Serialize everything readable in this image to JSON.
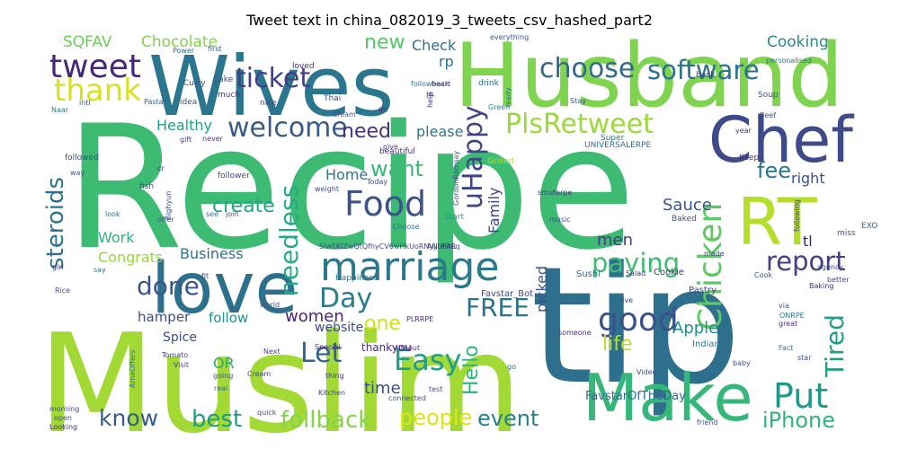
{
  "chart_data": {
    "type": "wordcloud",
    "title": "Tweet text in china_082019_3_tweets_csv_hashed_part2",
    "background": "#ffffff",
    "words": [
      {
        "text": "Recipe",
        "color": "#3dbb73"
      },
      {
        "text": "tip",
        "color": "#2e6f8e"
      },
      {
        "text": "Muslim",
        "color": "#a2d934"
      },
      {
        "text": "Husband",
        "color": "#7ed34f"
      },
      {
        "text": "Wives",
        "color": "#2a768e"
      },
      {
        "text": "Make",
        "color": "#35b779"
      },
      {
        "text": "love",
        "color": "#2d708e"
      },
      {
        "text": "Chef",
        "color": "#3e4a89"
      },
      {
        "text": "RT",
        "color": "#b5de2b"
      },
      {
        "text": "marriage",
        "color": "#2a788e"
      },
      {
        "text": "Food",
        "color": "#3b528b"
      },
      {
        "text": "tweet",
        "color": "#482677"
      },
      {
        "text": "thank",
        "color": "#d8e219"
      },
      {
        "text": "Chicken",
        "color": "#5ec962"
      },
      {
        "text": "good",
        "color": "#3b518b"
      },
      {
        "text": "Put",
        "color": "#1f988b"
      },
      {
        "text": "Easy",
        "color": "#1f9e89"
      },
      {
        "text": "PlsRetweet",
        "color": "#9bd93c"
      },
      {
        "text": "ticket",
        "color": "#424086"
      },
      {
        "text": "choose",
        "color": "#31688e"
      },
      {
        "text": "software",
        "color": "#2c728e"
      },
      {
        "text": "welcome",
        "color": "#375b8d"
      },
      {
        "text": "report",
        "color": "#433e85"
      },
      {
        "text": "paying",
        "color": "#3fbc73"
      },
      {
        "text": "uHappy",
        "color": "#404588"
      },
      {
        "text": "needless",
        "color": "#25ab82"
      },
      {
        "text": "done",
        "color": "#39568c"
      },
      {
        "text": "Day",
        "color": "#287d8e"
      },
      {
        "text": "Let",
        "color": "#33638d"
      },
      {
        "text": "FREE",
        "color": "#2c738e"
      },
      {
        "text": "Tired",
        "color": "#1f9f88"
      },
      {
        "text": "iPhone",
        "color": "#31b57b"
      },
      {
        "text": "know",
        "color": "#365c8d"
      },
      {
        "text": "best",
        "color": "#1e9c89"
      },
      {
        "text": "follback",
        "color": "#84d44b"
      },
      {
        "text": "event",
        "color": "#27808e"
      },
      {
        "text": "people",
        "color": "#dfe318"
      },
      {
        "text": "steroids",
        "color": "#2c728e"
      },
      {
        "text": "want",
        "color": "#38b977"
      },
      {
        "text": "fee",
        "color": "#2a778e"
      },
      {
        "text": "need",
        "color": "#46337f"
      },
      {
        "text": "new",
        "color": "#56c667"
      },
      {
        "text": "create",
        "color": "#22a785"
      },
      {
        "text": "life",
        "color": "#b8de29"
      },
      {
        "text": "one",
        "color": "#d2e21b"
      },
      {
        "text": "Hello",
        "color": "#2fb47c"
      },
      {
        "text": "Apple",
        "color": "#21908d"
      },
      {
        "text": "Sauce",
        "color": "#3a548c"
      },
      {
        "text": "time",
        "color": "#3d4e8a"
      },
      {
        "text": "men",
        "color": "#453781"
      },
      {
        "text": "women",
        "color": "#482475"
      },
      {
        "text": "SQFAV",
        "color": "#6ccd5a"
      },
      {
        "text": "Chocolate",
        "color": "#81d34d"
      },
      {
        "text": "Cooking",
        "color": "#23898e"
      },
      {
        "text": "Healthy",
        "color": "#1fa088"
      },
      {
        "text": "please",
        "color": "#2a788e"
      },
      {
        "text": "Check",
        "color": "#2d708e"
      },
      {
        "text": "rp",
        "color": "#2c738e"
      },
      {
        "text": "Home",
        "color": "#2b758e"
      },
      {
        "text": "Family",
        "color": "#3f4788"
      },
      {
        "text": "right",
        "color": "#3b528b"
      },
      {
        "text": "Business",
        "color": "#2c728e"
      },
      {
        "text": "Work",
        "color": "#2db27d"
      },
      {
        "text": "Congrats",
        "color": "#95d840"
      },
      {
        "text": "hamper",
        "color": "#3d4d8a"
      },
      {
        "text": "follow",
        "color": "#21918c"
      },
      {
        "text": "website",
        "color": "#3e4989"
      },
      {
        "text": "thankyou",
        "color": "#46307e"
      },
      {
        "text": "picked",
        "color": "#3a548c"
      },
      {
        "text": "tl",
        "color": "#481a6c"
      },
      {
        "text": "OR",
        "color": "#22a884"
      },
      {
        "text": "Spice",
        "color": "#3e4c8a"
      },
      {
        "text": "FavstarOfTheDay",
        "color": "#30698e"
      },
      {
        "text": "Favstar_Bot",
        "color": "#404688"
      },
      {
        "text": "Happiness",
        "color": "#2a788e"
      },
      {
        "text": "Pastry",
        "color": "#433e85"
      },
      {
        "text": "Indian",
        "color": "#2a788e"
      },
      {
        "text": "Sushi",
        "color": "#32648e"
      },
      {
        "text": "Cookie",
        "color": "#46307e"
      },
      {
        "text": "Baked",
        "color": "#3b528b"
      },
      {
        "text": "Start",
        "color": "#1fa088"
      },
      {
        "text": "follower",
        "color": "#3e4a89"
      },
      {
        "text": "beautiful",
        "color": "#46327e"
      },
      {
        "text": "Grilled",
        "color": "#bade28"
      },
      {
        "text": "Super",
        "color": "#2d708e"
      },
      {
        "text": "UNIVERSALERPE",
        "color": "#2e6f8e"
      },
      {
        "text": "Soup",
        "color": "#3b528b"
      },
      {
        "text": "Keep",
        "color": "#463480"
      },
      {
        "text": "EXO",
        "color": "#355f8d"
      },
      {
        "text": "miss",
        "color": "#3a548c"
      },
      {
        "text": "following",
        "color": "#453882"
      },
      {
        "text": "Curry",
        "color": "#3d4d8a"
      },
      {
        "text": "Cake",
        "color": "#3c4f8a"
      },
      {
        "text": "Power",
        "color": "#2e6e8e"
      },
      {
        "text": "first",
        "color": "#3b528b"
      },
      {
        "text": "followback",
        "color": "#2d718e"
      },
      {
        "text": "heart",
        "color": "#46327e"
      },
      {
        "text": "Hi",
        "color": "#3f4788"
      },
      {
        "text": "loved",
        "color": "#472d7b"
      },
      {
        "text": "everything",
        "color": "#3c4f8a"
      },
      {
        "text": "Green",
        "color": "#24878e"
      },
      {
        "text": "drink",
        "color": "#2d708e"
      },
      {
        "text": "personalised",
        "color": "#2a788e"
      },
      {
        "text": "back",
        "color": "#46327e"
      },
      {
        "text": "idea",
        "color": "#3b528b"
      },
      {
        "text": "nice",
        "color": "#404688"
      },
      {
        "text": "much",
        "color": "#46337f"
      },
      {
        "text": "Thai",
        "color": "#3e4989"
      },
      {
        "text": "Pasta",
        "color": "#355f8d"
      },
      {
        "text": "intl",
        "color": "#3b528b"
      },
      {
        "text": "Naar",
        "color": "#2a788e"
      },
      {
        "text": "gift",
        "color": "#404688"
      },
      {
        "text": "never",
        "color": "#463480"
      },
      {
        "text": "followed",
        "color": "#3e4a89"
      },
      {
        "text": "way",
        "color": "#3c4f8a"
      },
      {
        "text": "fish",
        "color": "#3b528b"
      },
      {
        "text": "cr",
        "color": "#46307e"
      },
      {
        "text": "look",
        "color": "#2d718e"
      },
      {
        "text": "offer",
        "color": "#3b528b"
      },
      {
        "text": "join",
        "color": "#3f4788"
      },
      {
        "text": "see",
        "color": "#2e6e8e"
      },
      {
        "text": "girl",
        "color": "#46327e"
      },
      {
        "text": "Rice",
        "color": "#3b528b"
      },
      {
        "text": "say",
        "color": "#2a788e"
      },
      {
        "text": "Tomato",
        "color": "#404688"
      },
      {
        "text": "Visit",
        "color": "#3e4989"
      },
      {
        "text": "Next",
        "color": "#3d4d8a"
      },
      {
        "text": "Special",
        "color": "#46307e"
      },
      {
        "text": "going",
        "color": "#3b528b"
      },
      {
        "text": "real",
        "color": "#2d718e"
      },
      {
        "text": "Cream",
        "color": "#3c4f8a"
      },
      {
        "text": "thing",
        "color": "#453882"
      },
      {
        "text": "Kitchen",
        "color": "#3e4a89"
      },
      {
        "text": "connected",
        "color": "#3b528b"
      },
      {
        "text": "without",
        "color": "#46327e"
      },
      {
        "text": "go",
        "color": "#2e6e8e"
      },
      {
        "text": "Video",
        "color": "#3b528b"
      },
      {
        "text": "live",
        "color": "#3f4788"
      },
      {
        "text": "someone",
        "color": "#46307e"
      },
      {
        "text": "ONRPE",
        "color": "#2a788e"
      },
      {
        "text": "via",
        "color": "#3b528b"
      },
      {
        "text": "great",
        "color": "#463480"
      },
      {
        "text": "star",
        "color": "#3c4f8a"
      },
      {
        "text": "baby",
        "color": "#3b528b"
      },
      {
        "text": "Fact",
        "color": "#2d718e"
      },
      {
        "text": "better",
        "color": "#3e4989"
      },
      {
        "text": "Cook",
        "color": "#3b528b"
      },
      {
        "text": "Salad",
        "color": "#46327e"
      },
      {
        "text": "made",
        "color": "#3f4788"
      },
      {
        "text": "music",
        "color": "#3b528b"
      },
      {
        "text": "ANUFAR",
        "color": "#46307e"
      },
      {
        "text": "Choose",
        "color": "#2a788e"
      },
      {
        "text": "Today",
        "color": "#3b528b"
      },
      {
        "text": "world",
        "color": "#3c4f8a"
      },
      {
        "text": "morning",
        "color": "#3e4a89"
      },
      {
        "text": "open",
        "color": "#3b528b"
      },
      {
        "text": "Looking",
        "color": "#46327e"
      },
      {
        "text": "dream",
        "color": "#3b528b"
      },
      {
        "text": "help",
        "color": "#46307e"
      },
      {
        "text": "ready",
        "color": "#2a788e"
      },
      {
        "text": "Stay",
        "color": "#3b528b"
      },
      {
        "text": "Beef",
        "color": "#3c4f8a"
      },
      {
        "text": "year",
        "color": "#46327e"
      },
      {
        "text": "weight",
        "color": "#3b528b"
      },
      {
        "text": "give",
        "color": "#3f4788"
      },
      {
        "text": "smuterpe",
        "color": "#463480"
      },
      {
        "text": "GordonRamsay",
        "color": "#3b528b"
      },
      {
        "text": "agency",
        "color": "#3e4989"
      },
      {
        "text": "Baking",
        "color": "#46307e"
      },
      {
        "text": "bighyun",
        "color": "#3b528b"
      },
      {
        "text": "SlwEKlZwQtQfhyCV6wHkUoRNyjjofBlLq",
        "color": "#3e4a89"
      },
      {
        "text": "im",
        "color": "#46327e"
      },
      {
        "text": "test",
        "color": "#3b528b"
      },
      {
        "text": "AmaOffers",
        "color": "#2d718e"
      },
      {
        "text": "PLRRPE",
        "color": "#46307e"
      },
      {
        "text": "fit",
        "color": "#3b528b"
      },
      {
        "text": "friend",
        "color": "#3c4f8a"
      },
      {
        "text": "quick",
        "color": "#3f4788"
      }
    ]
  }
}
